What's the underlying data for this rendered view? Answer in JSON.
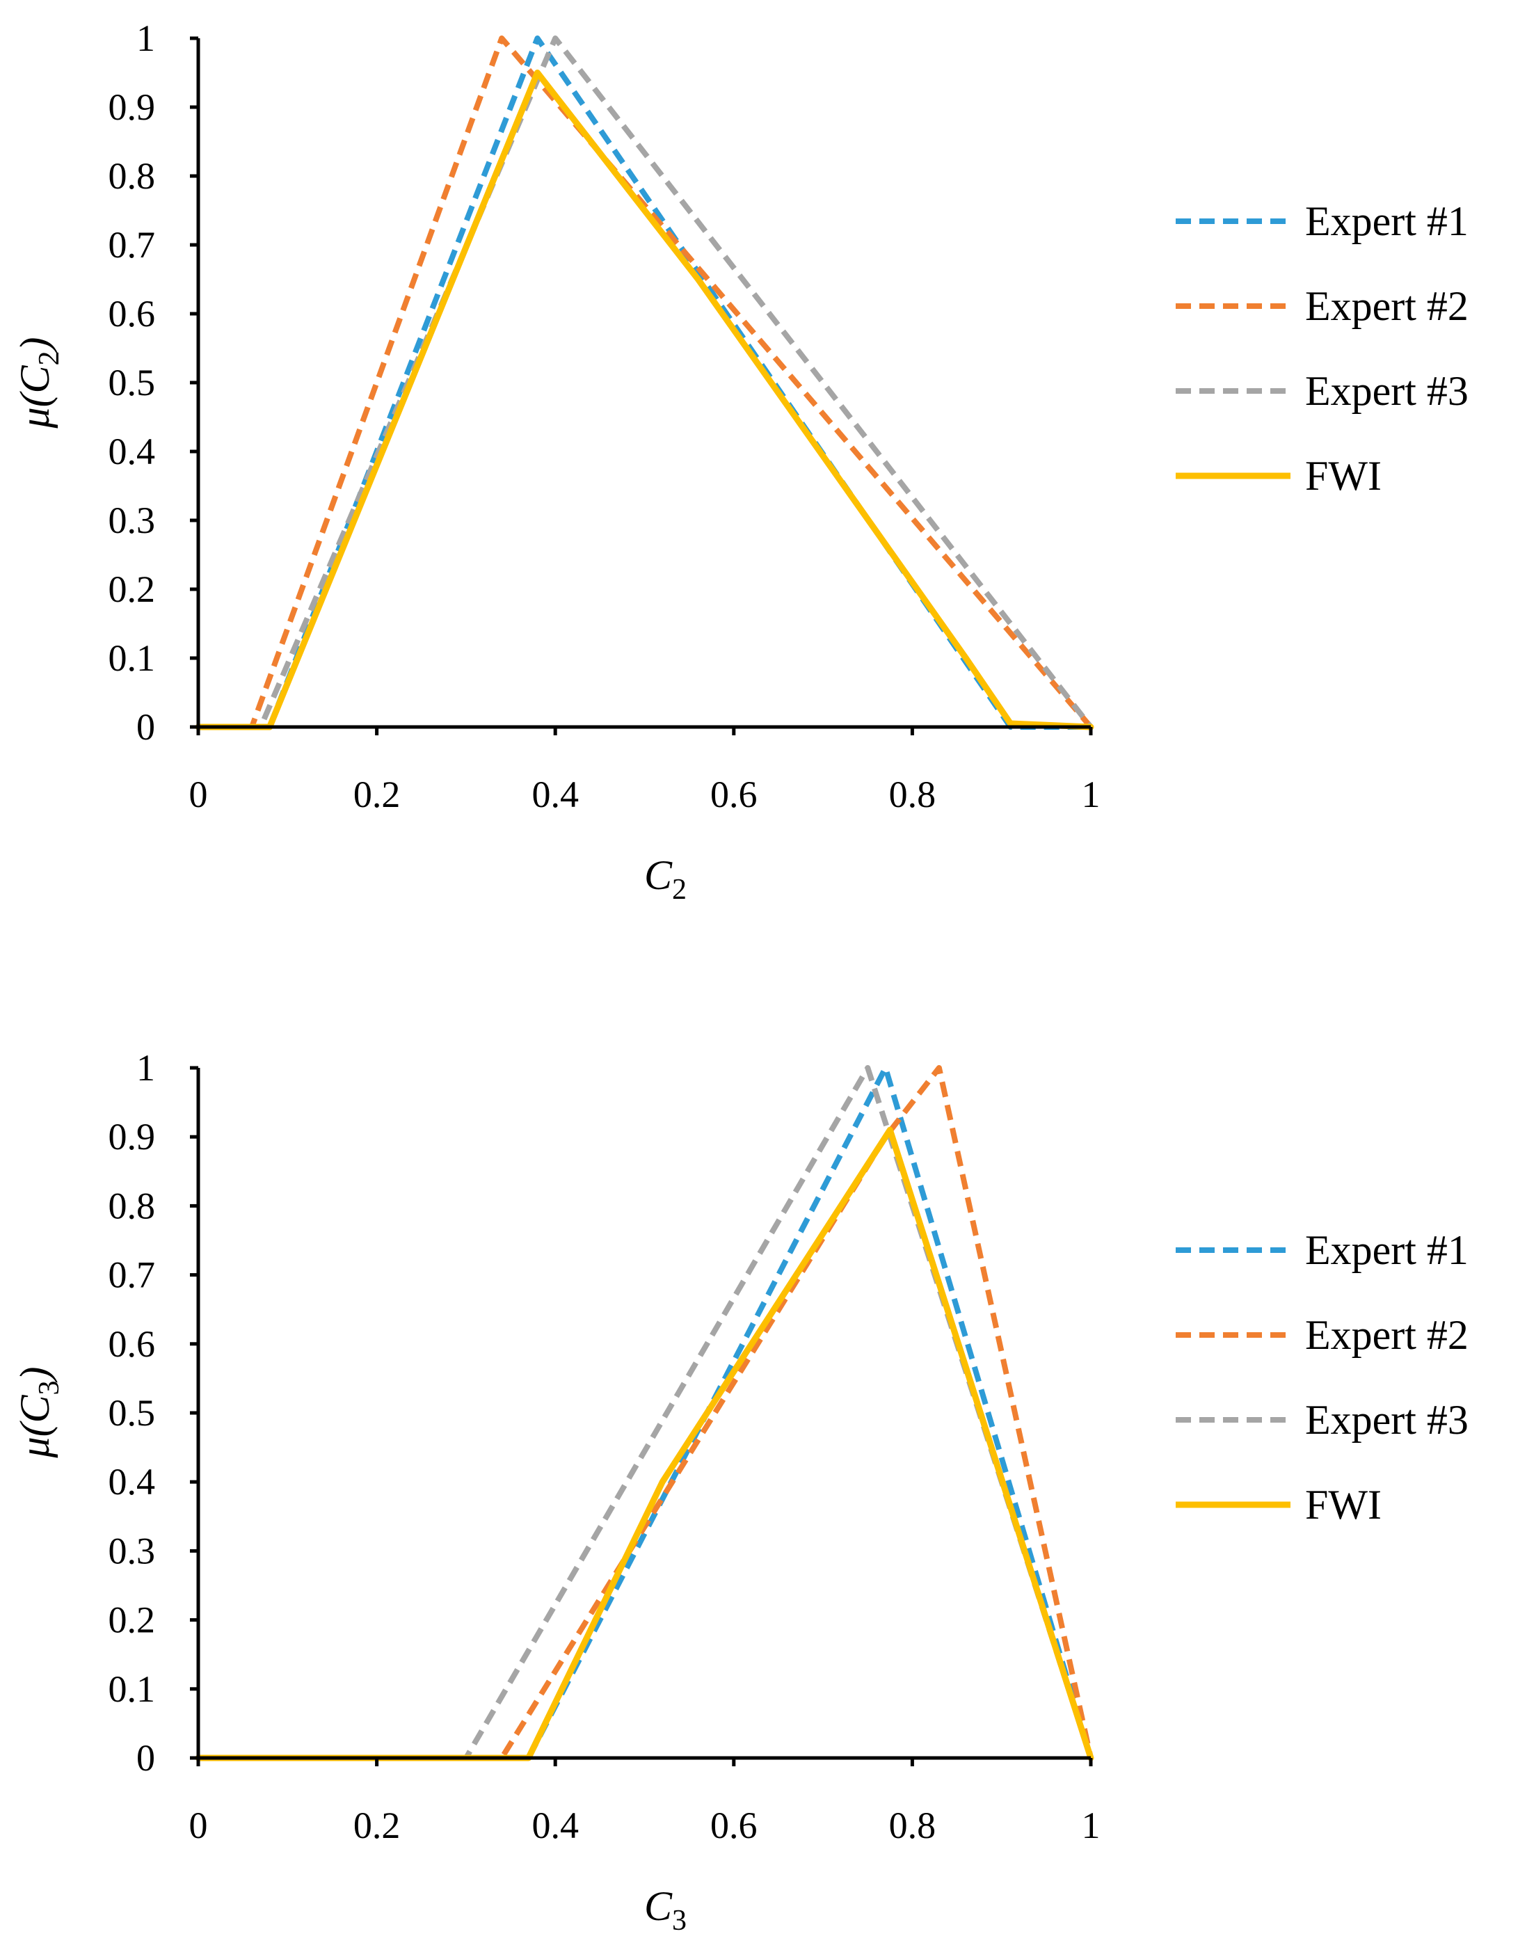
{
  "chart_data": [
    {
      "type": "line",
      "title": "",
      "xlabel": "C2",
      "xlabel_parts": {
        "main": "C",
        "sub": "2"
      },
      "ylabel": "μ(C2)",
      "ylabel_parts": {
        "pre": "μ(C",
        "sub": "2",
        "post": ")"
      },
      "xlim": [
        0,
        1
      ],
      "ylim": [
        0,
        1
      ],
      "xticks": [
        "0",
        "0.2",
        "0.4",
        "0.6",
        "0.8",
        "1"
      ],
      "yticks": [
        "0",
        "0.1",
        "0.2",
        "0.3",
        "0.4",
        "0.5",
        "0.6",
        "0.7",
        "0.8",
        "0.9",
        "1"
      ],
      "grid": false,
      "legend_position": "right",
      "series": [
        {
          "name": "Expert #1",
          "color": "#2E9BD6",
          "dashed": true,
          "points": [
            [
              0,
              0
            ],
            [
              0.08,
              0
            ],
            [
              0.38,
              1
            ],
            [
              0.91,
              0
            ],
            [
              1,
              0
            ]
          ]
        },
        {
          "name": "Expert #2",
          "color": "#F07F30",
          "dashed": true,
          "points": [
            [
              0,
              0
            ],
            [
              0.06,
              0
            ],
            [
              0.34,
              1
            ],
            [
              1,
              0
            ]
          ]
        },
        {
          "name": "Expert #3",
          "color": "#A5A5A5",
          "dashed": true,
          "points": [
            [
              0,
              0
            ],
            [
              0.07,
              0
            ],
            [
              0.4,
              1
            ],
            [
              1,
              0
            ]
          ]
        },
        {
          "name": "FWI",
          "color": "#FDBF00",
          "dashed": false,
          "points": [
            [
              0,
              0
            ],
            [
              0.08,
              0
            ],
            [
              0.38,
              0.95
            ],
            [
              0.56,
              0.65
            ],
            [
              0.86,
              0.1
            ],
            [
              0.91,
              0.005
            ],
            [
              1,
              0
            ]
          ]
        }
      ]
    },
    {
      "type": "line",
      "title": "",
      "xlabel": "C3",
      "xlabel_parts": {
        "main": "C",
        "sub": "3"
      },
      "ylabel": "μ(C3)",
      "ylabel_parts": {
        "pre": "μ(C",
        "sub": "3",
        "post": ")"
      },
      "xlim": [
        0,
        1
      ],
      "ylim": [
        0,
        1
      ],
      "xticks": [
        "0",
        "0.2",
        "0.4",
        "0.6",
        "0.8",
        "1"
      ],
      "yticks": [
        "0",
        "0.1",
        "0.2",
        "0.3",
        "0.4",
        "0.5",
        "0.6",
        "0.7",
        "0.8",
        "0.9",
        "1"
      ],
      "grid": false,
      "legend_position": "right",
      "series": [
        {
          "name": "Expert #1",
          "color": "#2E9BD6",
          "dashed": true,
          "points": [
            [
              0,
              0
            ],
            [
              0.37,
              0
            ],
            [
              0.77,
              1
            ],
            [
              1,
              0
            ]
          ]
        },
        {
          "name": "Expert #2",
          "color": "#F07F30",
          "dashed": true,
          "points": [
            [
              0,
              0
            ],
            [
              0.34,
              0
            ],
            [
              0.77,
              0.9
            ],
            [
              0.83,
              1
            ],
            [
              1,
              0
            ]
          ]
        },
        {
          "name": "Expert #3",
          "color": "#A5A5A5",
          "dashed": true,
          "points": [
            [
              0,
              0
            ],
            [
              0.3,
              0
            ],
            [
              0.75,
              1
            ],
            [
              1,
              0
            ]
          ]
        },
        {
          "name": "FWI",
          "color": "#FDBF00",
          "dashed": false,
          "points": [
            [
              0,
              0
            ],
            [
              0.37,
              0
            ],
            [
              0.52,
              0.4
            ],
            [
              0.775,
              0.91
            ],
            [
              1,
              0
            ]
          ]
        }
      ]
    }
  ]
}
